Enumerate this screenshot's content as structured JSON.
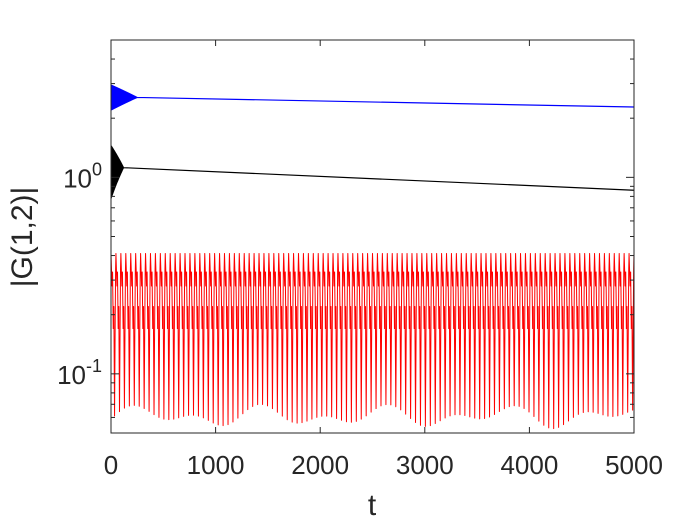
{
  "chart_data": {
    "type": "line",
    "xlabel": "t",
    "ylabel": "|G(1,2)|",
    "x_scale": "linear",
    "y_scale": "log",
    "xlim": [
      0,
      5000
    ],
    "ylim": [
      0.05,
      5
    ],
    "x_ticks": [
      0,
      1000,
      2000,
      3000,
      4000,
      5000
    ],
    "x_tick_labels": [
      "0",
      "1000",
      "2000",
      "3000",
      "4000",
      "5000"
    ],
    "y_ticks": [
      {
        "value": 1,
        "base": "10",
        "exp": "0"
      },
      {
        "value": 0.1,
        "base": "10",
        "exp": "-1"
      }
    ],
    "grid": false,
    "series": [
      {
        "color": "#0000ff",
        "style": "decaying oscillation then slow linear decay",
        "initial_oscillation": {
          "t_end": 250,
          "min": 2.2,
          "max": 2.95
        },
        "trend": [
          [
            250,
            2.55
          ],
          [
            5000,
            2.28
          ]
        ]
      },
      {
        "color": "#000000",
        "style": "decaying oscillation then slow linear decay",
        "initial_oscillation": {
          "t_end": 120,
          "min": 0.78,
          "max": 1.45
        },
        "trend": [
          [
            120,
            1.12
          ],
          [
            5000,
            0.86
          ]
        ]
      },
      {
        "color": "#ff0000",
        "style": "persistent periodic oscillation",
        "periods_in_range": 106,
        "max": 0.41,
        "min_range": [
          0.052,
          0.07
        ]
      }
    ]
  }
}
